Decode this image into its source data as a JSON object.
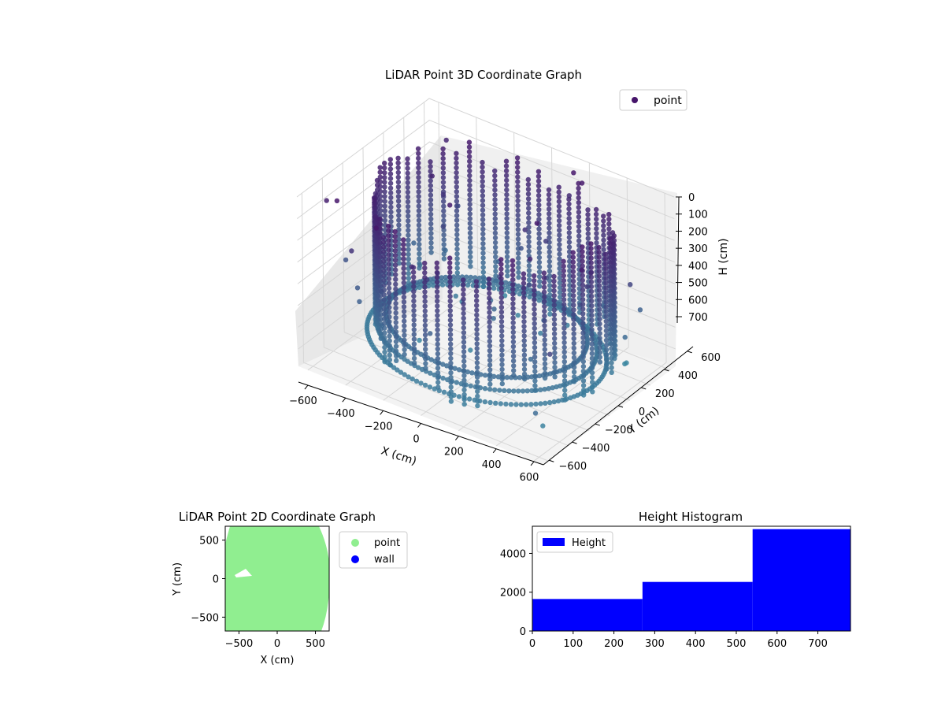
{
  "colors": {
    "points_3d_top": "#46156a",
    "points_3d_bottom": "#3b8aa2",
    "points_3d_high": "#45d090",
    "point_2d": "#90ee90",
    "wall": "#0000ff",
    "histogram": "#0000ff"
  },
  "chart_data": [
    {
      "type": "scatter",
      "title": "LiDAR Point 3D Coordinate Graph",
      "xlabel": "X (cm)",
      "ylabel": "Y (cm)",
      "zlabel": "H (cm)",
      "xlim": [
        -650,
        650
      ],
      "ylim": [
        -650,
        650
      ],
      "zlim": [
        780,
        0
      ],
      "x_ticks": [
        -600,
        -400,
        -200,
        0,
        200,
        400,
        600
      ],
      "y_ticks": [
        -600,
        -400,
        -200,
        0,
        200,
        400,
        600
      ],
      "z_ticks": [
        0,
        100,
        200,
        300,
        400,
        500,
        600,
        700
      ],
      "grid": true,
      "legend": {
        "placement": "upper-right",
        "entries": [
          "point"
        ]
      },
      "series": [
        {
          "name": "point",
          "description": "dense ring of LiDAR returns around the room walls, colored by height"
        }
      ]
    },
    {
      "type": "scatter",
      "title": "LiDAR Point 2D Coordinate Graph",
      "xlabel": "X (cm)",
      "ylabel": "Y (cm)",
      "xlim": [
        -680,
        680
      ],
      "ylim": [
        -680,
        680
      ],
      "x_ticks": [
        -500,
        0,
        500
      ],
      "y_ticks": [
        -500,
        0,
        500
      ],
      "legend": {
        "placement": "outside-right",
        "entries": [
          "point",
          "wall"
        ]
      },
      "series": [
        {
          "name": "point",
          "description": "filled disc of projected points"
        },
        {
          "name": "wall",
          "description": "no visible points"
        }
      ]
    },
    {
      "type": "bar",
      "title": "Height Histogram",
      "xlabel": "",
      "ylabel": "",
      "xlim": [
        0,
        780
      ],
      "ylim": [
        0,
        5400
      ],
      "x_ticks": [
        0,
        100,
        200,
        300,
        400,
        500,
        600,
        700
      ],
      "y_ticks": [
        0,
        2000,
        4000
      ],
      "legend": {
        "placement": "upper-left",
        "entries": [
          "Height"
        ]
      },
      "series": [
        {
          "name": "Height",
          "bins": [
            {
              "from": 0,
              "to": 270,
              "count": 1650
            },
            {
              "from": 270,
              "to": 540,
              "count": 2530
            },
            {
              "from": 540,
              "to": 780,
              "count": 5250
            }
          ]
        }
      ]
    }
  ]
}
